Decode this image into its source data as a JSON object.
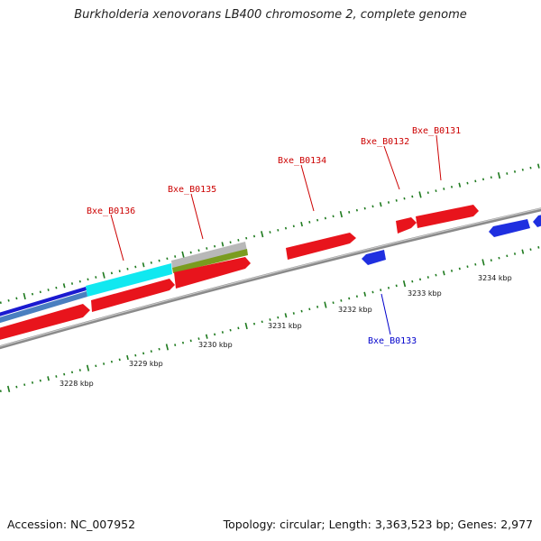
{
  "title": "Burkholderia xenovorans LB400 chromosome 2, complete genome",
  "footer": {
    "accession": "Accession: NC_007952",
    "stats": "Topology: circular; Length: 3,363,523 bp; Genes: 2,977"
  },
  "colors": {
    "forward_gene": "#e8141c",
    "reverse_gene": "#1f2fe0",
    "backbone": "#8a8a8a",
    "ticks": "#1e7a1e",
    "label_forward": "#cc0000",
    "label_reverse": "#0000cc",
    "feature_cyan": "#11e8f0",
    "feature_olive": "#7a9c1e",
    "feature_grey": "#b8b8b8",
    "feature_steel": "#4a7fc0",
    "feature_navy": "#1a1ad0"
  },
  "scale_labels": [
    "3228 kbp",
    "3229 kbp",
    "3230 kbp",
    "3231 kbp",
    "3232 kbp",
    "3233 kbp",
    "3234 kbp"
  ],
  "gene_labels": [
    {
      "text": "Bxe_B0136",
      "strand": "forward"
    },
    {
      "text": "Bxe_B0135",
      "strand": "forward"
    },
    {
      "text": "Bxe_B0134",
      "strand": "forward"
    },
    {
      "text": "Bxe_B0132",
      "strand": "forward"
    },
    {
      "text": "Bxe_B0131",
      "strand": "forward"
    },
    {
      "text": "Bxe_B0133",
      "strand": "reverse"
    }
  ]
}
